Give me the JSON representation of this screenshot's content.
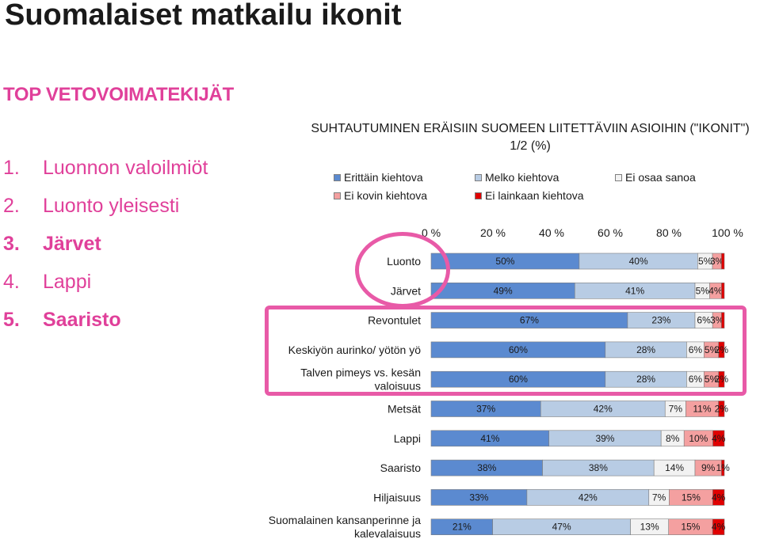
{
  "page": {
    "title": "Suomalaiset matkailu ikonit",
    "heading": "TOP VETOVOIMATEKIJÄT",
    "ranking": [
      {
        "num": "1.",
        "label": "Luonnon valoilmiöt",
        "bold": false
      },
      {
        "num": "2.",
        "label": "Luonto yleisesti",
        "bold": false
      },
      {
        "num": "3.",
        "label": "Järvet",
        "bold": true
      },
      {
        "num": "4.",
        "label": "Lappi",
        "bold": false
      },
      {
        "num": "5.",
        "label": "Saaristo",
        "bold": true
      }
    ]
  },
  "chart_data": {
    "type": "bar",
    "orientation": "horizontal",
    "stacked": "percent",
    "title": "SUHTAUTUMINEN ERÄISIIN SUOMEEN LIITETTÄVIIN ASIOIHIN (\"IKONIT\") 1/2 (%)",
    "xlabel": "",
    "ylabel": "",
    "xlim": [
      0,
      100
    ],
    "x_ticks": [
      "0 %",
      "20 %",
      "40 %",
      "60 %",
      "80 %",
      "100 %"
    ],
    "legend_position": "top",
    "categories": [
      "Luonto",
      "Järvet",
      "Revontulet",
      "Keskiyön aurinko/ yötön yö",
      "Talven pimeys vs. kesän valoisuus",
      "Metsät",
      "Lappi",
      "Saaristo",
      "Hiljaisuus",
      "Suomalainen kansanperinne ja kalevalaisuus"
    ],
    "category_lines": [
      [
        "Luonto"
      ],
      [
        "Järvet"
      ],
      [
        "Revontulet"
      ],
      [
        "Keskiyön aurinko/ yötön yö"
      ],
      [
        "Talven pimeys vs. kesän",
        "valoisuus"
      ],
      [
        "Metsät"
      ],
      [
        "Lappi"
      ],
      [
        "Saaristo"
      ],
      [
        "Hiljaisuus"
      ],
      [
        "Suomalainen kansanperinne ja",
        "kalevalaisuus"
      ]
    ],
    "series": [
      {
        "name": "Erittäin kiehtova",
        "color": "#5b8ad0",
        "values": [
          50,
          49,
          67,
          60,
          60,
          37,
          41,
          38,
          33,
          21
        ]
      },
      {
        "name": "Melko kiehtova",
        "color": "#b8cce4",
        "values": [
          40,
          41,
          23,
          28,
          28,
          42,
          39,
          38,
          42,
          47
        ]
      },
      {
        "name": "Ei osaa sanoa",
        "color": "#f2f2f2",
        "values": [
          5,
          5,
          6,
          6,
          6,
          7,
          8,
          14,
          7,
          13
        ]
      },
      {
        "name": "Ei kovin kiehtova",
        "color": "#f4a0a0",
        "values": [
          3,
          4,
          3,
          5,
          5,
          11,
          10,
          9,
          15,
          15
        ]
      },
      {
        "name": "Ei lainkaan kiehtova",
        "color": "#e00000",
        "values": [
          1,
          1,
          1,
          2,
          2,
          2,
          4,
          1,
          4,
          4
        ]
      }
    ],
    "labels": [
      [
        "50%",
        "40%",
        "5%",
        "3%",
        ""
      ],
      [
        "49%",
        "41%",
        "5%",
        "4%",
        ""
      ],
      [
        "67%",
        "23%",
        "6%",
        "3%",
        ""
      ],
      [
        "60%",
        "28%",
        "6%",
        "5%",
        "2%"
      ],
      [
        "60%",
        "28%",
        "6%",
        "5%",
        "2%"
      ],
      [
        "37%",
        "42%",
        "7%",
        "11%",
        "2%"
      ],
      [
        "41%",
        "39%",
        "8%",
        "10%",
        "4%"
      ],
      [
        "38%",
        "38%",
        "14%",
        "9%",
        "1%"
      ],
      [
        "33%",
        "42%",
        "7%",
        "15%",
        "4%"
      ],
      [
        "21%",
        "47%",
        "13%",
        "15%",
        "4%"
      ]
    ]
  }
}
